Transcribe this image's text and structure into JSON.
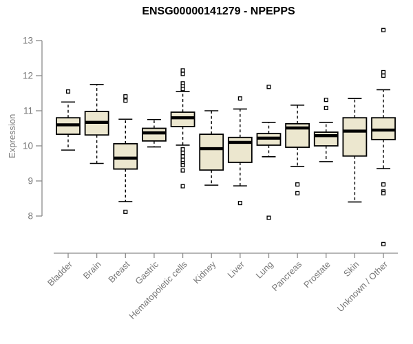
{
  "chart_data": {
    "type": "boxplot",
    "title": "ENSG00000141279 - NPEPPS",
    "ylabel": "Expression",
    "xlabel": "",
    "yticks": [
      8,
      9,
      10,
      11,
      12,
      13
    ],
    "ylim": [
      7.2,
      13.4
    ],
    "grid": false,
    "legend": "none",
    "categories": [
      "Bladder",
      "Brain",
      "Breast",
      "Gastric",
      "Hematopoietic cells",
      "Kidney",
      "Liver",
      "Lung",
      "Pancreas",
      "Prostate",
      "Skin",
      "Unknown / Other"
    ],
    "series": [
      {
        "category": "Bladder",
        "whisker_low": 9.88,
        "q1": 10.33,
        "median": 10.6,
        "q3": 10.8,
        "whisker_high": 11.25,
        "outliers": [
          11.55
        ]
      },
      {
        "category": "Brain",
        "whisker_low": 9.5,
        "q1": 10.31,
        "median": 10.67,
        "q3": 10.98,
        "whisker_high": 11.75,
        "outliers": []
      },
      {
        "category": "Breast",
        "whisker_low": 8.41,
        "q1": 9.34,
        "median": 9.65,
        "q3": 10.06,
        "whisker_high": 10.76,
        "outliers": [
          11.41,
          11.29,
          8.12
        ]
      },
      {
        "category": "Gastric",
        "whisker_low": 9.97,
        "q1": 10.14,
        "median": 10.37,
        "q3": 10.5,
        "whisker_high": 10.75,
        "outliers": []
      },
      {
        "category": "Hematopoietic cells",
        "whisker_low": 10.02,
        "q1": 10.55,
        "median": 10.8,
        "q3": 10.96,
        "whisker_high": 11.55,
        "outliers": [
          12.15,
          12.05,
          11.78,
          11.7,
          11.62,
          9.9,
          9.8,
          9.7,
          9.6,
          9.5,
          9.45,
          9.3,
          8.85
        ]
      },
      {
        "category": "Kidney",
        "whisker_low": 8.88,
        "q1": 9.31,
        "median": 9.92,
        "q3": 10.33,
        "whisker_high": 11.0,
        "outliers": []
      },
      {
        "category": "Liver",
        "whisker_low": 8.86,
        "q1": 9.53,
        "median": 10.1,
        "q3": 10.24,
        "whisker_high": 11.05,
        "outliers": [
          11.35,
          8.37
        ]
      },
      {
        "category": "Lung",
        "whisker_low": 9.69,
        "q1": 10.02,
        "median": 10.22,
        "q3": 10.35,
        "whisker_high": 10.67,
        "outliers": [
          11.68,
          7.95
        ]
      },
      {
        "category": "Pancreas",
        "whisker_low": 9.41,
        "q1": 9.96,
        "median": 10.51,
        "q3": 10.63,
        "whisker_high": 11.16,
        "outliers": [
          8.9,
          8.65
        ]
      },
      {
        "category": "Prostate",
        "whisker_low": 9.55,
        "q1": 10.0,
        "median": 10.29,
        "q3": 10.39,
        "whisker_high": 10.67,
        "outliers": [
          11.31,
          11.08
        ]
      },
      {
        "category": "Skin",
        "whisker_low": 8.4,
        "q1": 9.71,
        "median": 10.42,
        "q3": 10.8,
        "whisker_high": 11.35,
        "outliers": []
      },
      {
        "category": "Unknown / Other",
        "whisker_low": 9.35,
        "q1": 10.18,
        "median": 10.45,
        "q3": 10.8,
        "whisker_high": 11.6,
        "outliers": [
          13.3,
          12.1,
          12.0,
          8.9,
          8.7,
          8.65,
          7.2
        ]
      }
    ]
  },
  "colors": {
    "box_fill": "#ece7cf",
    "box_border": "#000000",
    "median": "#000000",
    "axis_line": "#8a8a8a",
    "axis_text": "#787878",
    "title_text": "#000000",
    "background": "#ffffff"
  }
}
